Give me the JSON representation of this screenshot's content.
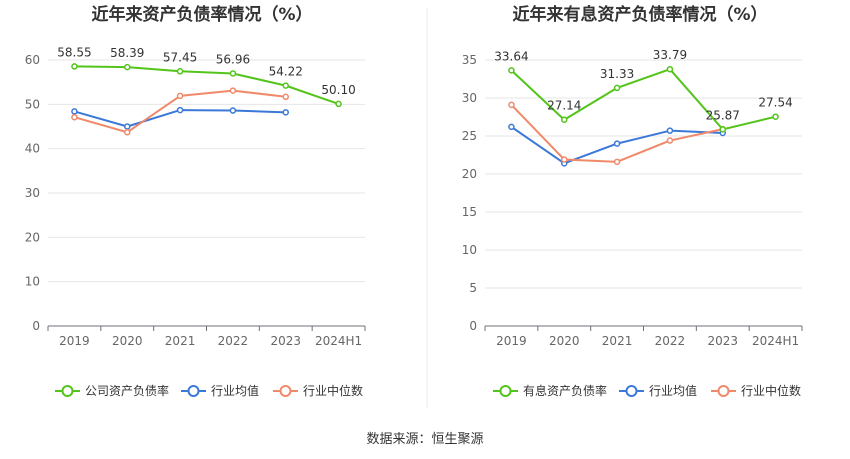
{
  "source_text": "数据来源：恒生聚源",
  "chart_data": [
    {
      "type": "line",
      "title": "近年来资产负债率情况（%）",
      "categories": [
        "2019",
        "2020",
        "2021",
        "2022",
        "2023",
        "2024H1"
      ],
      "ylim": [
        0,
        60
      ],
      "yticks": [
        "0",
        "10",
        "20",
        "30",
        "40",
        "50",
        "60"
      ],
      "series": [
        {
          "name": "公司资产负债率",
          "color": "#52c41a",
          "values": [
            58.55,
            58.39,
            57.45,
            56.96,
            54.22,
            50.1
          ],
          "labels": [
            "58.55",
            "58.39",
            "57.45",
            "56.96",
            "54.22",
            "50.10"
          ]
        },
        {
          "name": "行业均值",
          "color": "#3b78d8",
          "values": [
            48.4,
            45.0,
            48.7,
            48.6,
            48.2,
            null
          ]
        },
        {
          "name": "行业中位数",
          "color": "#f0896a",
          "values": [
            47.1,
            43.7,
            51.9,
            53.1,
            51.7,
            null
          ]
        }
      ]
    },
    {
      "type": "line",
      "title": "近年来有息资产负债率情况（%）",
      "categories": [
        "2019",
        "2020",
        "2021",
        "2022",
        "2023",
        "2024H1"
      ],
      "ylim": [
        0,
        35
      ],
      "yticks": [
        "0",
        "5",
        "10",
        "15",
        "20",
        "25",
        "30",
        "35"
      ],
      "series": [
        {
          "name": "有息资产负债率",
          "color": "#52c41a",
          "values": [
            33.64,
            27.14,
            31.33,
            33.79,
            25.87,
            27.54
          ],
          "labels": [
            "33.64",
            "27.14",
            "31.33",
            "33.79",
            "25.87",
            "27.54"
          ]
        },
        {
          "name": "行业均值",
          "color": "#3b78d8",
          "values": [
            26.2,
            21.4,
            24.0,
            25.7,
            25.4,
            null
          ]
        },
        {
          "name": "行业中位数",
          "color": "#f0896a",
          "values": [
            29.1,
            21.9,
            21.6,
            24.4,
            25.9,
            null
          ]
        }
      ]
    }
  ]
}
